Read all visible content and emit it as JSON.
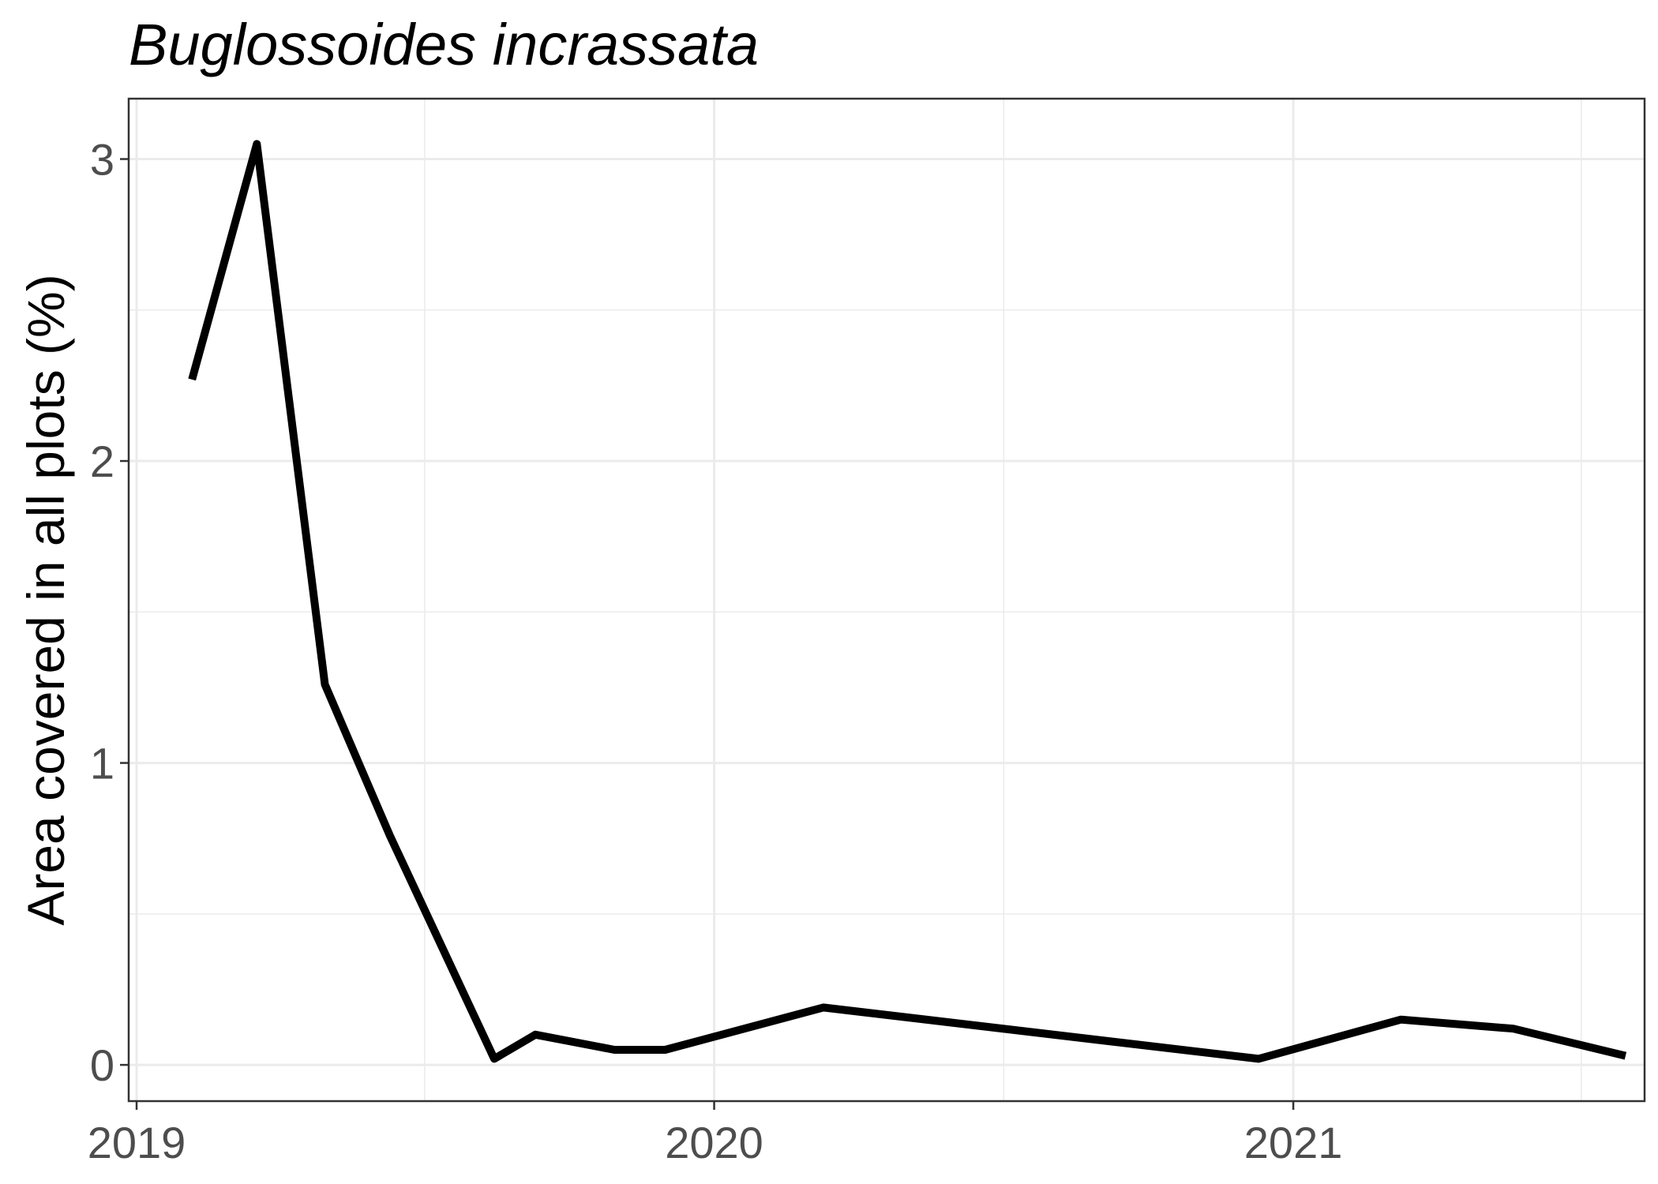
{
  "chart_data": {
    "type": "line",
    "title": "Buglossoides incrassata",
    "xlabel": "",
    "ylabel": "Area covered in all plots (%)",
    "x_tick_labels": [
      "2019",
      "2020",
      "2021"
    ],
    "y_tick_labels": [
      "0",
      "1",
      "2",
      "3"
    ],
    "xlim": [
      "2018-12-27",
      "2021-08-11"
    ],
    "ylim": [
      -0.12,
      3.2
    ],
    "grid": true,
    "series": [
      {
        "color": "#000000",
        "points": [
          {
            "x": "2019-02-05",
            "y": 2.27
          },
          {
            "x": "2019-03-18",
            "y": 3.05
          },
          {
            "x": "2019-04-30",
            "y": 1.26
          },
          {
            "x": "2019-06-10",
            "y": 0.76
          },
          {
            "x": "2019-08-15",
            "y": 0.02
          },
          {
            "x": "2019-09-10",
            "y": 0.1
          },
          {
            "x": "2019-10-30",
            "y": 0.05
          },
          {
            "x": "2019-12-01",
            "y": 0.05
          },
          {
            "x": "2020-03-10",
            "y": 0.19
          },
          {
            "x": "2020-12-10",
            "y": 0.02
          },
          {
            "x": "2021-03-10",
            "y": 0.15
          },
          {
            "x": "2021-05-20",
            "y": 0.12
          },
          {
            "x": "2021-07-30",
            "y": 0.03
          }
        ]
      }
    ]
  }
}
